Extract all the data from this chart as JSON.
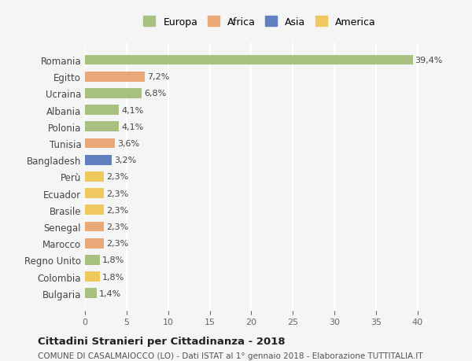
{
  "countries": [
    "Romania",
    "Egitto",
    "Ucraina",
    "Albania",
    "Polonia",
    "Tunisia",
    "Bangladesh",
    "Perù",
    "Ecuador",
    "Brasile",
    "Senegal",
    "Marocco",
    "Regno Unito",
    "Colombia",
    "Bulgaria"
  ],
  "values": [
    39.4,
    7.2,
    6.8,
    4.1,
    4.1,
    3.6,
    3.2,
    2.3,
    2.3,
    2.3,
    2.3,
    2.3,
    1.8,
    1.8,
    1.4
  ],
  "labels": [
    "39,4%",
    "7,2%",
    "6,8%",
    "4,1%",
    "4,1%",
    "3,6%",
    "3,2%",
    "2,3%",
    "2,3%",
    "2,3%",
    "2,3%",
    "2,3%",
    "1,8%",
    "1,8%",
    "1,4%"
  ],
  "continents": [
    "Europa",
    "Africa",
    "Europa",
    "Europa",
    "Europa",
    "Africa",
    "Asia",
    "America",
    "America",
    "America",
    "Africa",
    "Africa",
    "Europa",
    "America",
    "Europa"
  ],
  "colors": {
    "Europa": "#a8c080",
    "Africa": "#e8a878",
    "Asia": "#6080c0",
    "America": "#f0c860"
  },
  "legend_colors": {
    "Europa": "#a8c080",
    "Africa": "#e8a878",
    "Asia": "#6080c0",
    "America": "#f0c860"
  },
  "bg_color": "#f5f5f5",
  "grid_color": "#ffffff",
  "title": "Cittadini Stranieri per Cittadinanza - 2018",
  "subtitle": "COMUNE DI CASALMAIOCCO (LO) - Dati ISTAT al 1° gennaio 2018 - Elaborazione TUTTITALIA.IT",
  "xlim": [
    0,
    42
  ],
  "xticks": [
    0,
    5,
    10,
    15,
    20,
    25,
    30,
    35,
    40
  ]
}
